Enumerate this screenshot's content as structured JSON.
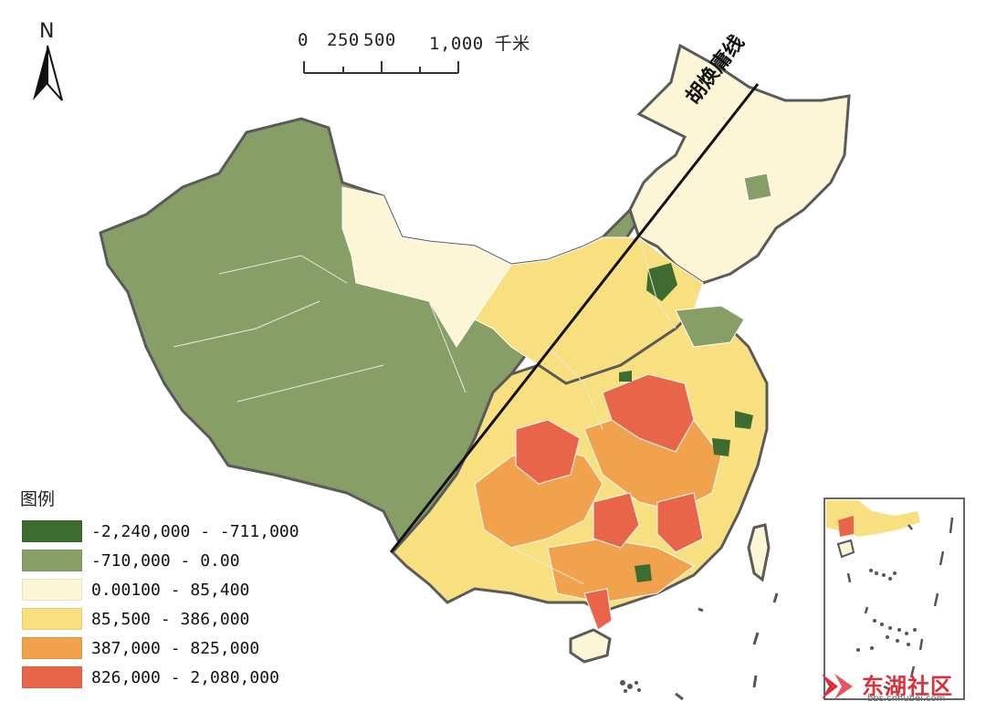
{
  "north_arrow": {
    "label": "N",
    "icon": "north-arrow-icon"
  },
  "scale_bar": {
    "ticks": [
      "0",
      "250",
      "500",
      "1,000 千米"
    ]
  },
  "hu_line": {
    "label": "胡焕庸线"
  },
  "legend": {
    "title": "图例",
    "items": [
      {
        "label": "-2,240,000 - -711,000",
        "color": "#3e6b2f"
      },
      {
        "label": "-710,000 - 0.00",
        "color": "#879e66"
      },
      {
        "label": "0.00100 - 85,400",
        "color": "#fdf6d6"
      },
      {
        "label": "85,500 - 386,000",
        "color": "#f8df80"
      },
      {
        "label": "387,000 - 825,000",
        "color": "#f0a24c"
      },
      {
        "label": "826,000 - 2,080,000",
        "color": "#e8654a"
      }
    ]
  },
  "inset_map": {
    "icon": "south-china-sea-inset"
  },
  "watermark": {
    "text": "东湖社区",
    "sub": "bbs.cnhubei.com"
  },
  "colors": {
    "dark_green": "#3e6b2f",
    "olive": "#879e66",
    "pale": "#fdf6d6",
    "yellow": "#f8df80",
    "orange": "#f0a24c",
    "red": "#e8654a",
    "border": "#555555"
  }
}
